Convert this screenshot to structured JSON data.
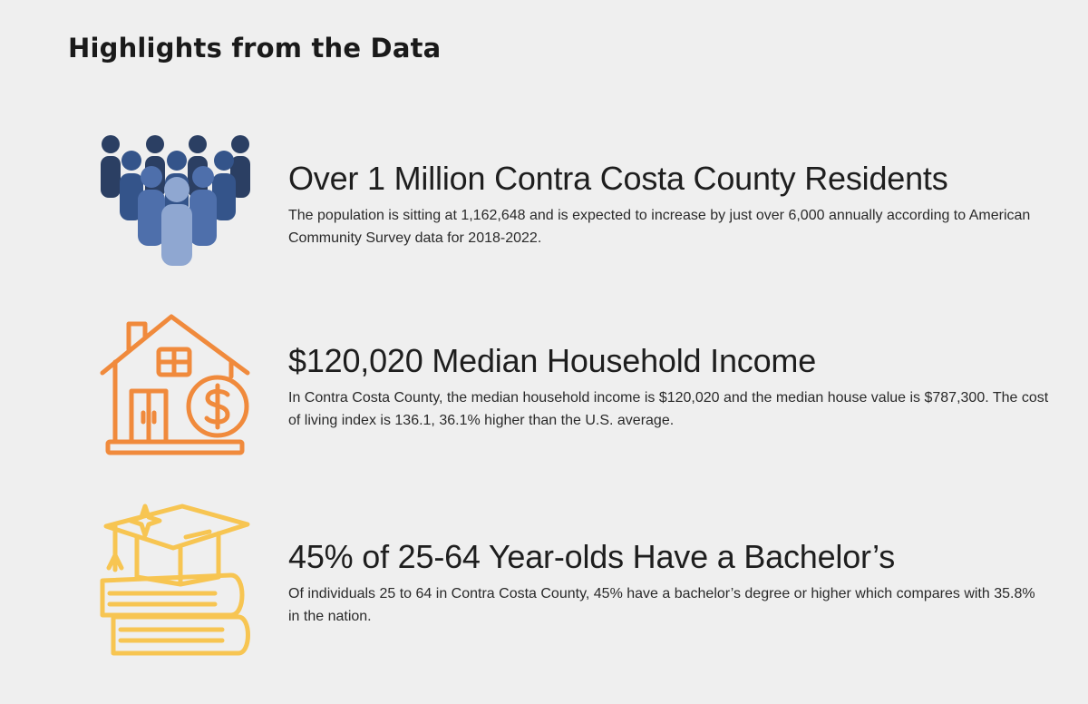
{
  "page": {
    "title": "Highlights from the Data"
  },
  "highlights": [
    {
      "icon": "people-group-icon",
      "color": "#2e4a7a",
      "title": "Over 1 Million Contra Costa County Residents",
      "description": "The population is sitting at 1,162,648 and is expected to increase by just over 6,000 annually according to American Community Survey data for 2018-2022."
    },
    {
      "icon": "house-dollar-icon",
      "color": "#f08a3c",
      "title": "$120,020 Median Household Income",
      "description": "In Contra Costa County, the median household income is $120,020 and the median house value is $787,300. The cost of living index is 136.1, 36.1% higher than the U.S. average."
    },
    {
      "icon": "graduation-books-icon",
      "color": "#f7c552",
      "title": "45% of 25-64 Year-olds Have a Bachelor’s",
      "description": "Of individuals 25 to 64 in Contra Costa County, 45% have a bachelor’s degree or higher which compares with 35.8% in the nation."
    }
  ]
}
